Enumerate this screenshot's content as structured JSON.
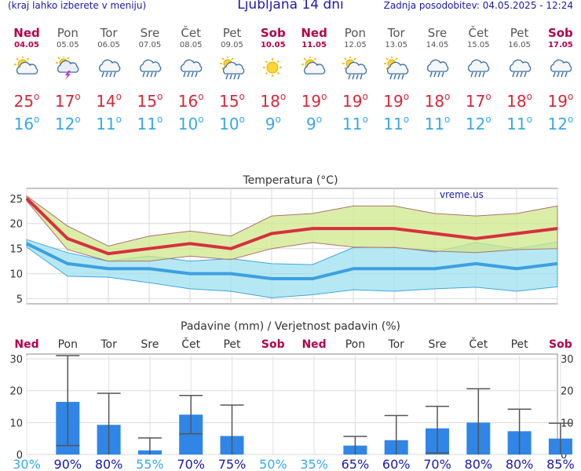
{
  "header": {
    "left_note": "(kraj lahko izberete v meniju)",
    "title": "Ljubljana 14 dni",
    "updated": "Zadnja posodobitev: 04.05.2025 - 12:24"
  },
  "days": [
    {
      "name": "Ned",
      "date": "04.05",
      "weekend": true,
      "icon": "partly-cloudy-icon",
      "max": "25",
      "min": "16"
    },
    {
      "name": "Pon",
      "date": "05.05",
      "weekend": false,
      "icon": "thunderstorm-icon",
      "max": "17",
      "min": "12"
    },
    {
      "name": "Tor",
      "date": "06.05",
      "weekend": false,
      "icon": "cloud-rain-icon",
      "max": "14",
      "min": "11"
    },
    {
      "name": "Sre",
      "date": "07.05",
      "weekend": false,
      "icon": "cloud-rain-icon",
      "max": "15",
      "min": "11"
    },
    {
      "name": "Čet",
      "date": "08.05",
      "weekend": false,
      "icon": "cloud-rain-icon",
      "max": "16",
      "min": "10"
    },
    {
      "name": "Pet",
      "date": "09.05",
      "weekend": false,
      "icon": "sun-cloud-rain-icon",
      "max": "15",
      "min": "10"
    },
    {
      "name": "Sob",
      "date": "10.05",
      "weekend": true,
      "icon": "sunny-icon",
      "max": "18",
      "min": "9"
    },
    {
      "name": "Ned",
      "date": "11.05",
      "weekend": true,
      "icon": "partly-cloudy-icon",
      "max": "19",
      "min": "9"
    },
    {
      "name": "Pon",
      "date": "12.05",
      "weekend": false,
      "icon": "sun-cloud-rain-icon",
      "max": "19",
      "min": "11"
    },
    {
      "name": "Tor",
      "date": "13.05",
      "weekend": false,
      "icon": "sun-cloud-rain-icon",
      "max": "19",
      "min": "11"
    },
    {
      "name": "Sre",
      "date": "14.05",
      "weekend": false,
      "icon": "cloud-rain-icon",
      "max": "18",
      "min": "11"
    },
    {
      "name": "Čet",
      "date": "15.05",
      "weekend": false,
      "icon": "cloud-rain-icon",
      "max": "17",
      "min": "12"
    },
    {
      "name": "Pet",
      "date": "16.05",
      "weekend": false,
      "icon": "cloud-rain-icon",
      "max": "18",
      "min": "11"
    },
    {
      "name": "Sob",
      "date": "17.05",
      "weekend": true,
      "icon": "cloud-rain-icon",
      "max": "19",
      "min": "12"
    }
  ],
  "chart_data": [
    {
      "type": "area",
      "title": "Temperatura (°C)",
      "watermark": "vreme.us",
      "grid": true,
      "ylim": [
        4,
        27
      ],
      "yticks": [
        5,
        10,
        15,
        20,
        25
      ],
      "x": [
        "04.05",
        "05.05",
        "06.05",
        "07.05",
        "08.05",
        "09.05",
        "10.05",
        "11.05",
        "12.05",
        "13.05",
        "14.05",
        "15.05",
        "16.05",
        "17.05"
      ],
      "series": [
        {
          "role": "max",
          "color": "#d63040",
          "values": [
            25,
            17,
            14,
            15,
            16,
            15,
            18,
            19,
            19,
            19,
            18,
            17,
            18,
            19
          ]
        },
        {
          "role": "max_upper",
          "color": "#cfe88a",
          "values": [
            25.5,
            19.5,
            15.5,
            17.5,
            18.5,
            17.5,
            21.5,
            22,
            23.5,
            23.5,
            22,
            21.5,
            22,
            23.5
          ]
        },
        {
          "role": "max_lower",
          "color": "#cfe88a",
          "values": [
            24.5,
            14.8,
            12.5,
            12.5,
            13.5,
            12.8,
            15,
            16.2,
            15.3,
            15.2,
            14.5,
            14.2,
            14.8,
            15
          ]
        },
        {
          "role": "min",
          "color": "#3ca0e0",
          "values": [
            16,
            12,
            11,
            11,
            10,
            10,
            9,
            9,
            11,
            11,
            11,
            12,
            11,
            12
          ]
        },
        {
          "role": "min_upper",
          "color": "#9ee0f0",
          "values": [
            16.8,
            14.2,
            12.5,
            13.5,
            12.5,
            13,
            12,
            11.8,
            15.2,
            15.3,
            14.3,
            16.2,
            15,
            16.3
          ]
        },
        {
          "role": "min_lower",
          "color": "#9ee0f0",
          "values": [
            15.3,
            9.5,
            9.3,
            8.2,
            7,
            6.5,
            5.2,
            5.8,
            6.8,
            6.5,
            7,
            7.3,
            6.5,
            7.4
          ]
        }
      ]
    },
    {
      "type": "bar",
      "title": "Padavine (mm) / Verjetnost padavin (%)",
      "grid": true,
      "ylim": [
        0,
        31
      ],
      "yticks": [
        0,
        10,
        20,
        30
      ],
      "bar_color": "#2f86e6",
      "categories": [
        "Ned",
        "Pon",
        "Tor",
        "Sre",
        "Čet",
        "Pet",
        "Sob",
        "Ned",
        "Pon",
        "Tor",
        "Sre",
        "Čet",
        "Pet",
        "Sob"
      ],
      "weekend": [
        true,
        false,
        false,
        false,
        false,
        false,
        true,
        true,
        false,
        false,
        false,
        false,
        false,
        true
      ],
      "values": [
        0,
        16.5,
        9.3,
        1.3,
        12.5,
        5.8,
        0,
        0,
        2.8,
        4.5,
        8.2,
        10,
        7.3,
        5
      ],
      "err_low": [
        0,
        2.8,
        0,
        0,
        6.5,
        0,
        0,
        0,
        0,
        0,
        0.5,
        0,
        0,
        0
      ],
      "err_high": [
        0,
        31,
        19.2,
        5.2,
        18.5,
        15.5,
        0,
        0,
        5.7,
        12.2,
        15.1,
        20.6,
        14.2,
        9.8
      ],
      "probability": [
        "30%",
        "90%",
        "80%",
        "55%",
        "70%",
        "75%",
        "50%",
        "35%",
        "65%",
        "60%",
        "70%",
        "80%",
        "80%",
        "85%"
      ]
    }
  ],
  "colors": {
    "title_blue": "#1a1aa8",
    "weekend": "#b3004c",
    "max_red": "#d6283a",
    "min_blue": "#38a8e8",
    "prob_high": "#1a1aa8",
    "prob_low": "#38a8e8"
  }
}
